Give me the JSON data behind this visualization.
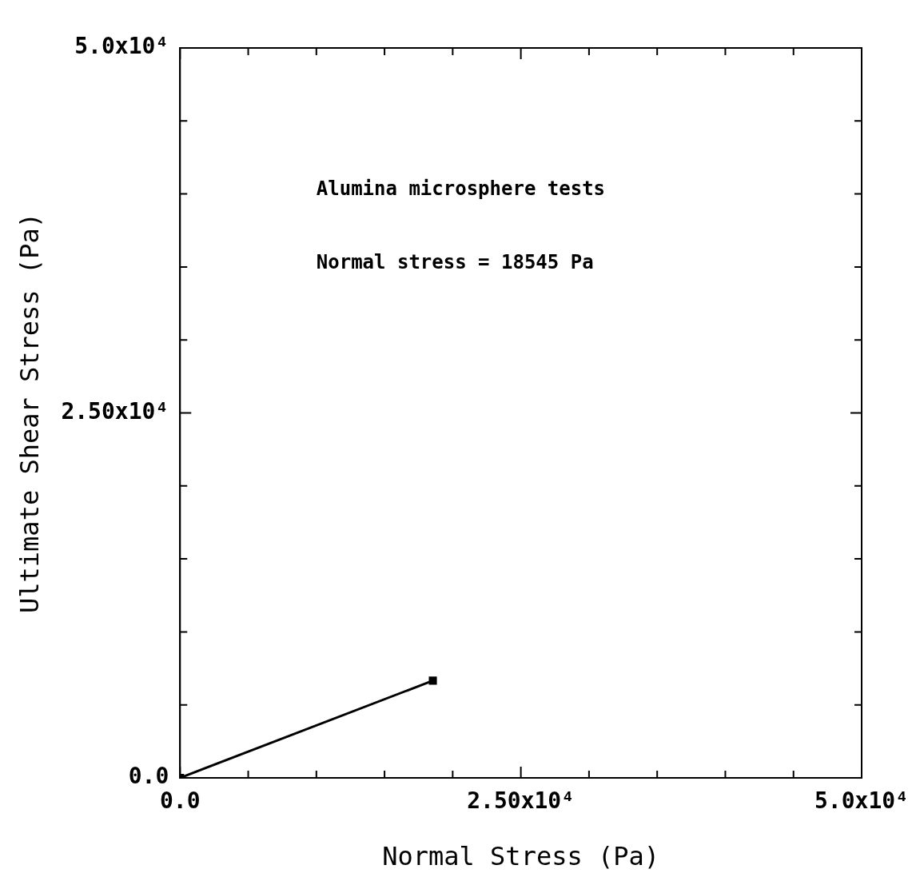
{
  "chart_data": {
    "type": "line",
    "xlabel": "Normal Stress (Pa)",
    "ylabel": "Ultimate Shear Stress (Pa)",
    "annotations": [
      "Alumina microsphere tests",
      "Normal stress = 18545 Pa"
    ],
    "x": [
      0,
      18545
    ],
    "series": [
      {
        "color": "#000000",
        "values": [
          0,
          6660
        ]
      }
    ],
    "xlim": [
      0,
      50000
    ],
    "ylim": [
      0,
      50000
    ],
    "xticks": [
      {
        "value": 0,
        "label": "0.0"
      },
      {
        "value": 5000,
        "label": null
      },
      {
        "value": 10000,
        "label": null
      },
      {
        "value": 15000,
        "label": null
      },
      {
        "value": 20000,
        "label": null
      },
      {
        "value": 25000,
        "label": "2.50x10⁴"
      },
      {
        "value": 30000,
        "label": null
      },
      {
        "value": 35000,
        "label": null
      },
      {
        "value": 40000,
        "label": null
      },
      {
        "value": 45000,
        "label": null
      },
      {
        "value": 50000,
        "label": "5.0x10⁴"
      }
    ],
    "yticks": [
      {
        "value": 0,
        "label": "0.0"
      },
      {
        "value": 5000,
        "label": null
      },
      {
        "value": 10000,
        "label": null
      },
      {
        "value": 15000,
        "label": null
      },
      {
        "value": 20000,
        "label": null
      },
      {
        "value": 25000,
        "label": "2.50x10⁴"
      },
      {
        "value": 30000,
        "label": null
      },
      {
        "value": 35000,
        "label": null
      },
      {
        "value": 40000,
        "label": null
      },
      {
        "value": 45000,
        "label": null
      },
      {
        "value": 50000,
        "label": "5.0x10⁴"
      }
    ],
    "grid": false,
    "legend": false,
    "marker": "square",
    "line_style": "solid"
  }
}
